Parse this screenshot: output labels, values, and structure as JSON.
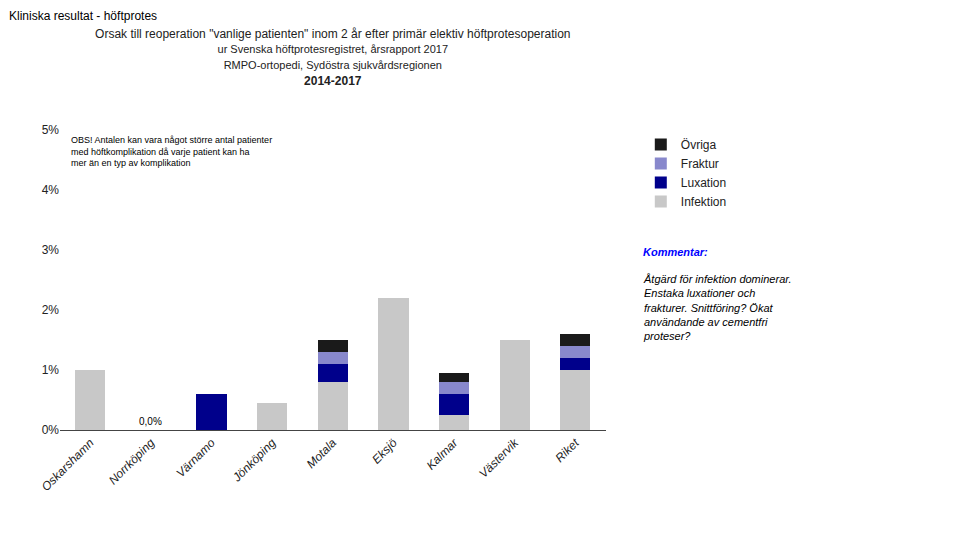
{
  "chart_data": {
    "type": "bar",
    "stacked": true,
    "title": "Orsak till reoperation \"vanlige patienten\" inom 2 år efter primär elektiv höftprotesoperation",
    "subtitle": "ur Svenska höftprotesregistret, årsrapport 2017\nRMPO-ortopedi, Sydöstra sjukvårdsregionen\n2014-2017",
    "categories": [
      "Oskarshamn",
      "Norrköping",
      "Värnamo",
      "Jönköping",
      "Motala",
      "Eksjö",
      "Kalmar",
      "Västervik",
      "Riket"
    ],
    "series": [
      {
        "name": "Infektion",
        "color": "#c8c8c8",
        "values": [
          0.01,
          0.0,
          0.0,
          0.0045,
          0.008,
          0.022,
          0.0025,
          0.015,
          0.01
        ]
      },
      {
        "name": "Luxation",
        "color": "#00008B",
        "values": [
          0.0,
          0.0,
          0.006,
          0.0,
          0.003,
          0.0,
          0.0035,
          0.0,
          0.002
        ]
      },
      {
        "name": "Fraktur",
        "color": "#8888cc",
        "values": [
          0.0,
          0.0,
          0.0,
          0.0,
          0.002,
          0.0,
          0.002,
          0.0,
          0.002
        ]
      },
      {
        "name": "Övriga",
        "color": "#1a1a1a",
        "values": [
          0.0,
          0.0,
          0.0,
          0.0,
          0.002,
          0.0,
          0.0015,
          0.0,
          0.002
        ]
      }
    ],
    "ylim": [
      0,
      0.05
    ],
    "yticks": [
      {
        "value": 0.0,
        "label": "0%"
      },
      {
        "value": 0.01,
        "label": "1%"
      },
      {
        "value": 0.02,
        "label": "2%"
      },
      {
        "value": 0.03,
        "label": "3%"
      },
      {
        "value": 0.04,
        "label": "4%"
      },
      {
        "value": 0.05,
        "label": "5%"
      }
    ],
    "grid": false,
    "legend": "right",
    "annotations": [
      {
        "text": "Kliniska resultat - höftprotes"
      },
      {
        "text": "OBS! Antalen kan vara något större antal patienter\nmed höftkomplikation då varje patient kan ha\nmer än en typ av komplikation"
      },
      {
        "text": "Kommentar:",
        "color": "blue"
      },
      {
        "text": "Åtgärd för infektion dominerar.\nEnstaka luxationer och\nfrakturer. Snittföring? Ökat\nanvändande av cementfri\nproteser?"
      },
      {
        "text": "0,0%",
        "x": "Norrköping",
        "y": 0.0002
      }
    ]
  }
}
